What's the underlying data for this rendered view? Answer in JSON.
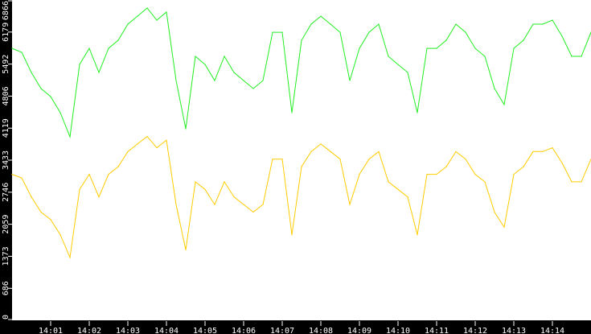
{
  "chart_data": {
    "type": "line",
    "ylim": [
      0,
      6866
    ],
    "xlim": [
      "14:00:00",
      "14:15:00"
    ],
    "grid": false,
    "yticks": [
      "0",
      "686",
      "1373",
      "2059",
      "2746",
      "3433",
      "4119",
      "4806",
      "5492",
      "6179",
      "6866"
    ],
    "ytick_values": [
      0,
      686,
      1373,
      2059,
      2746,
      3433,
      4119,
      4806,
      5492,
      6179,
      6866
    ],
    "xticks": [
      "14:01",
      "14:02",
      "14:03",
      "14:04",
      "14:05",
      "14:06",
      "14:07",
      "14:08",
      "14:09",
      "14:10",
      "14:11",
      "14:12",
      "14:13",
      "14:14"
    ],
    "x": [
      "14:00:00",
      "14:00:15",
      "14:00:30",
      "14:00:45",
      "14:01:00",
      "14:01:15",
      "14:01:30",
      "14:01:45",
      "14:02:00",
      "14:02:15",
      "14:02:30",
      "14:02:45",
      "14:03:00",
      "14:03:15",
      "14:03:30",
      "14:03:45",
      "14:04:00",
      "14:04:15",
      "14:04:30",
      "14:04:45",
      "14:05:00",
      "14:05:15",
      "14:05:30",
      "14:05:45",
      "14:06:00",
      "14:06:15",
      "14:06:30",
      "14:06:45",
      "14:07:00",
      "14:07:15",
      "14:07:30",
      "14:07:45",
      "14:08:00",
      "14:08:15",
      "14:08:30",
      "14:08:45",
      "14:09:00",
      "14:09:15",
      "14:09:30",
      "14:09:45",
      "14:10:00",
      "14:10:15",
      "14:10:30",
      "14:10:45",
      "14:11:00",
      "14:11:15",
      "14:11:30",
      "14:11:45",
      "14:12:00",
      "14:12:15",
      "14:12:30",
      "14:12:45",
      "14:13:00",
      "14:13:15",
      "14:13:30",
      "14:13:45",
      "14:14:00",
      "14:14:15",
      "14:14:30",
      "14:14:45",
      "14:15:00"
    ],
    "series": [
      {
        "color": "#22ee22",
        "values": [
          5830,
          5745,
          5313,
          4968,
          4796,
          4450,
          3933,
          5485,
          5830,
          5313,
          5830,
          6003,
          6348,
          6520,
          6693,
          6434,
          6607,
          5140,
          4106,
          5658,
          5485,
          5140,
          5658,
          5313,
          5140,
          4968,
          5140,
          6175,
          6175,
          4450,
          6003,
          6348,
          6520,
          6348,
          6175,
          5140,
          5830,
          6175,
          6348,
          5658,
          5485,
          5313,
          4450,
          5830,
          5830,
          6003,
          6348,
          6175,
          5830,
          5658,
          4968,
          4623,
          5830,
          6003,
          6348,
          6348,
          6434,
          6089,
          5658,
          5658,
          6175
        ]
      },
      {
        "color": "#ffcc00",
        "values": [
          3130,
          3050,
          2644,
          2320,
          2158,
          1833,
          1347,
          2806,
          3130,
          2644,
          3130,
          3293,
          3617,
          3779,
          3941,
          3698,
          3861,
          2482,
          1510,
          2969,
          2806,
          2482,
          2969,
          2644,
          2482,
          2320,
          2482,
          3455,
          3455,
          1833,
          3293,
          3617,
          3779,
          3617,
          3455,
          2482,
          3130,
          3455,
          3617,
          2969,
          2806,
          2644,
          1833,
          3130,
          3130,
          3293,
          3617,
          3455,
          3130,
          2969,
          2320,
          1996,
          3130,
          3293,
          3617,
          3617,
          3698,
          3374,
          2969,
          2969,
          3455
        ]
      }
    ]
  }
}
